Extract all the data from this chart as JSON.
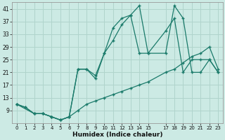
{
  "xlabel": "Humidex (Indice chaleur)",
  "bg_color": "#cceae4",
  "grid_color": "#b0d4cc",
  "line_color": "#1a7a6a",
  "xlim": [
    -0.5,
    23.5
  ],
  "ylim": [
    5,
    43
  ],
  "yticks": [
    9,
    13,
    17,
    21,
    25,
    29,
    33,
    37,
    41
  ],
  "ytick_labels": [
    "9",
    "13",
    "17",
    "21",
    "25",
    "29",
    "33",
    "37",
    "41"
  ],
  "xticks": [
    0,
    1,
    2,
    3,
    4,
    5,
    6,
    7,
    8,
    9,
    10,
    11,
    12,
    13,
    14,
    15,
    17,
    18,
    19,
    20,
    21,
    22,
    23
  ],
  "series1_x": [
    0,
    1,
    2,
    3,
    4,
    5,
    6,
    7,
    8,
    9,
    10,
    11,
    12,
    13,
    14,
    15,
    17,
    18,
    19,
    20,
    21,
    22,
    23
  ],
  "series1_y": [
    11,
    10,
    8,
    8,
    7,
    6,
    7,
    9,
    11,
    12,
    13,
    14,
    15,
    16,
    17,
    18,
    21,
    22,
    24,
    26,
    27,
    29,
    22
  ],
  "series2_x": [
    0,
    1,
    2,
    3,
    4,
    5,
    6,
    7,
    8,
    9,
    10,
    11,
    12,
    13,
    14,
    15,
    17,
    18,
    19,
    20,
    21,
    22,
    23
  ],
  "series2_y": [
    11,
    10,
    8,
    8,
    7,
    6,
    7,
    22,
    22,
    19,
    27,
    31,
    36,
    39,
    27,
    27,
    34,
    38,
    21,
    25,
    25,
    25,
    21
  ],
  "series3_x": [
    0,
    2,
    3,
    4,
    5,
    6,
    7,
    8,
    9,
    10,
    11,
    12,
    13,
    14,
    15,
    17,
    18,
    19,
    20,
    21,
    22,
    23
  ],
  "series3_y": [
    11,
    8,
    8,
    7,
    6,
    7,
    22,
    22,
    20,
    27,
    35,
    38,
    39,
    42,
    27,
    27,
    42,
    38,
    21,
    21,
    25,
    21
  ]
}
